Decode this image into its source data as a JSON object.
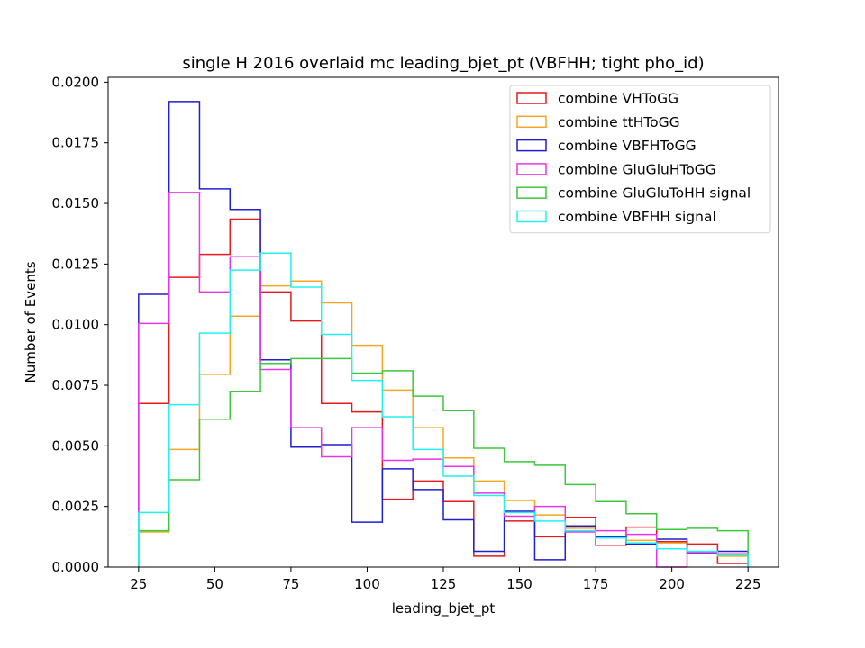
{
  "chart_data": {
    "type": "histogram",
    "title": "single H 2016 overlaid mc leading_bjet_pt (VBFHH; tight pho_id)",
    "xlabel": "leading_bjet_pt",
    "ylabel": "Number of Events",
    "xlim": [
      15,
      235
    ],
    "ylim": [
      0,
      0.0202
    ],
    "x_ticks": [
      25,
      50,
      75,
      100,
      125,
      150,
      175,
      200,
      225
    ],
    "y_ticks": [
      0.0,
      0.0025,
      0.005,
      0.0075,
      0.01,
      0.0125,
      0.015,
      0.0175,
      0.02
    ],
    "x_tick_labels": [
      "25",
      "50",
      "75",
      "100",
      "125",
      "150",
      "175",
      "200",
      "225"
    ],
    "y_tick_labels": [
      "0.0000",
      "0.0025",
      "0.0050",
      "0.0075",
      "0.0100",
      "0.0125",
      "0.0150",
      "0.0175",
      "0.0200"
    ],
    "bin_edges": [
      25,
      35,
      45,
      55,
      65,
      75,
      85,
      95,
      105,
      115,
      125,
      135,
      145,
      155,
      165,
      175,
      185,
      195,
      205,
      215,
      225
    ],
    "grid": false,
    "legend_position": "top-right",
    "series": [
      {
        "name": "combine VHToGG",
        "color": "#e41a1c",
        "values": [
          0.00675,
          0.01195,
          0.0129,
          0.01435,
          0.01135,
          0.01015,
          0.00675,
          0.0064,
          0.0028,
          0.00355,
          0.0027,
          0.00045,
          0.0019,
          0.00125,
          0.00205,
          0.0009,
          0.00165,
          0.00105,
          0.00095,
          0.00015
        ]
      },
      {
        "name": "combine ttHToGG",
        "color": "#f5a623",
        "values": [
          0.00145,
          0.00485,
          0.00795,
          0.01035,
          0.0116,
          0.0118,
          0.0109,
          0.00915,
          0.0073,
          0.00575,
          0.0045,
          0.00355,
          0.00275,
          0.00215,
          0.0016,
          0.00125,
          0.0011,
          0.001,
          0.0006,
          0.00045
        ]
      },
      {
        "name": "combine VBFHToGG",
        "color": "#1f1fd0",
        "values": [
          0.01125,
          0.0192,
          0.0156,
          0.01475,
          0.00855,
          0.00495,
          0.00505,
          0.00185,
          0.00405,
          0.0032,
          0.00195,
          0.00065,
          0.0023,
          0.0003,
          0.0017,
          0.00125,
          0.00095,
          0.00115,
          0.00055,
          0.00065
        ]
      },
      {
        "name": "combine GluGluHToGG",
        "color": "#e935e9",
        "values": [
          0.01005,
          0.01545,
          0.01135,
          0.0128,
          0.00815,
          0.00575,
          0.00455,
          0.00575,
          0.0044,
          0.00445,
          0.00415,
          0.00305,
          0.0021,
          0.0025,
          0.00145,
          0.0015,
          0.00135,
          0.0,
          0.0006,
          0.00055
        ]
      },
      {
        "name": "combine GluGluToHH signal",
        "color": "#3cc83c",
        "values": [
          0.0015,
          0.0036,
          0.0061,
          0.00725,
          0.0084,
          0.0086,
          0.0086,
          0.008,
          0.0081,
          0.00705,
          0.00645,
          0.0049,
          0.00435,
          0.0042,
          0.0034,
          0.0027,
          0.0022,
          0.00155,
          0.0016,
          0.0015
        ]
      },
      {
        "name": "combine VBFHH signal",
        "color": "#21f0f0",
        "values": [
          0.00225,
          0.0067,
          0.00965,
          0.01225,
          0.01295,
          0.01155,
          0.0096,
          0.0077,
          0.0062,
          0.00485,
          0.00375,
          0.00295,
          0.00225,
          0.0019,
          0.0015,
          0.0012,
          0.001,
          0.00075,
          0.00065,
          0.0005
        ]
      }
    ]
  }
}
